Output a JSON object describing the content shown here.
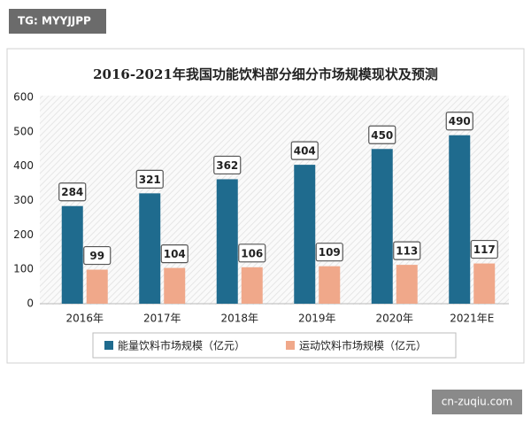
{
  "watermark": {
    "top": "TG: MYYJJPP",
    "bottom": "cn-zuqiu.com"
  },
  "chart_data": {
    "type": "bar",
    "title": "2016-2021年我国功能饮料部分细分市场规模现状及预测",
    "categories": [
      "2016年",
      "2017年",
      "2018年",
      "2019年",
      "2020年",
      "2021年E"
    ],
    "series": [
      {
        "name": "能量饮料市场规模（亿元）",
        "color": "#1f6b8e",
        "values": [
          284,
          321,
          362,
          404,
          450,
          490
        ]
      },
      {
        "name": "运动饮料市场规模（亿元）",
        "color": "#f0a88a",
        "values": [
          99,
          104,
          106,
          109,
          113,
          117
        ]
      }
    ],
    "ylim": [
      0,
      600
    ],
    "yticks": [
      0,
      100,
      200,
      300,
      400,
      500,
      600
    ],
    "grid": false,
    "legend": "bottom"
  }
}
